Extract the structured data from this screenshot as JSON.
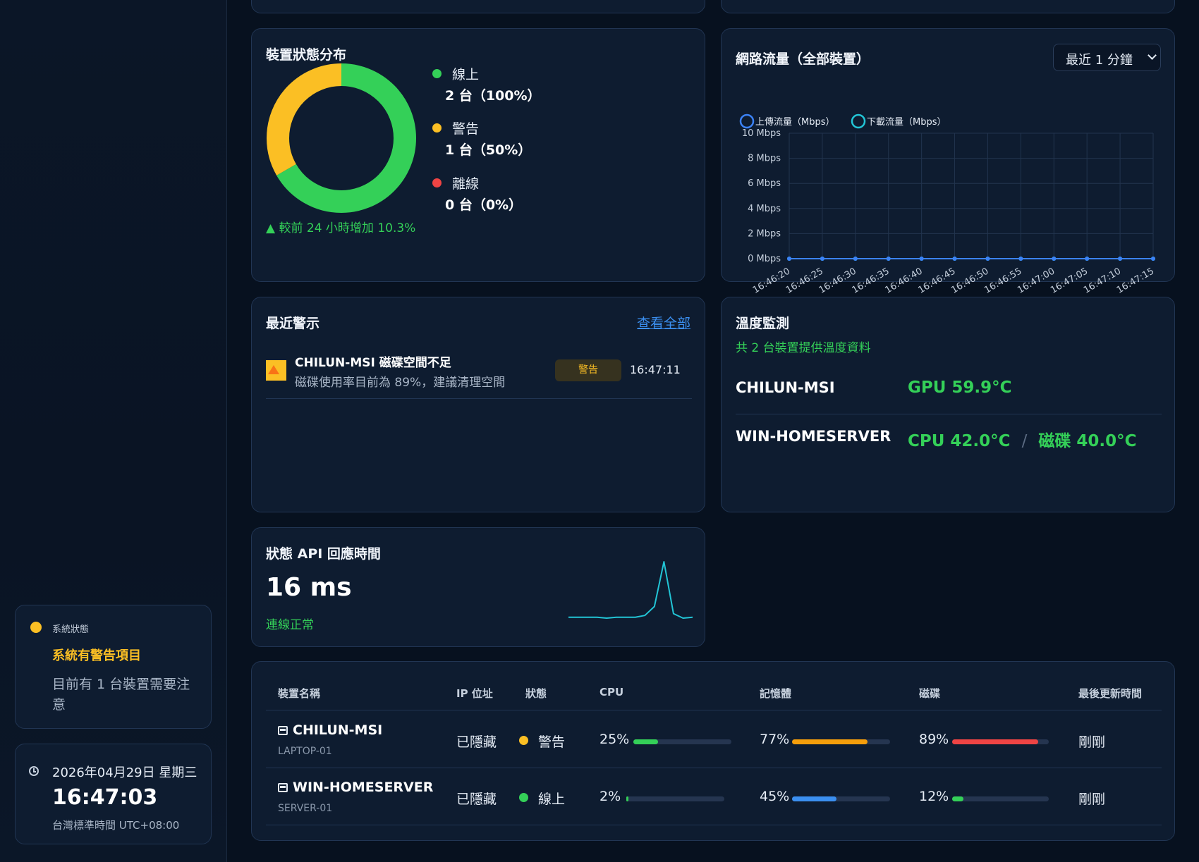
{
  "sidebar": {
    "system_status": {
      "label": "系統狀態",
      "headline": "系統有警告項目",
      "detail": "目前有 1 台裝置需要注意",
      "color": "#fbbf24"
    },
    "clock": {
      "date": "2026年04月29日 星期三",
      "time": "16:47:03",
      "timezone": "台灣標準時間 UTC+08:00"
    }
  },
  "device_status": {
    "title": "裝置狀態分布",
    "change_note": "▲ 較前 24 小時增加 10.3%",
    "legend": [
      {
        "label": "線上",
        "value": "2 台（100%）",
        "color": "#34d058"
      },
      {
        "label": "警告",
        "value": "1 台（50%）",
        "color": "#fbbf24"
      },
      {
        "label": "離線",
        "value": "0 台（0%）",
        "color": "#ef4444"
      }
    ],
    "donut": {
      "online": 2,
      "warning": 1,
      "offline": 0
    }
  },
  "network": {
    "title": "網路流量（全部裝置）",
    "range_select": "最近 1 分鐘",
    "chart_data": {
      "type": "line",
      "x": [
        "16:46:20",
        "16:46:25",
        "16:46:30",
        "16:46:35",
        "16:46:40",
        "16:46:45",
        "16:46:50",
        "16:46:55",
        "16:47:00",
        "16:47:05",
        "16:47:10",
        "16:47:15"
      ],
      "series": [
        {
          "name": "上傳流量（Mbps）",
          "values": [
            0,
            0,
            0,
            0,
            0,
            0,
            0,
            0,
            0,
            0,
            0,
            0
          ],
          "color": "#3b82f6"
        },
        {
          "name": "下載流量（Mbps）",
          "values": [
            0,
            0,
            0,
            0,
            0,
            0,
            0,
            0,
            0,
            0,
            0,
            0
          ],
          "color": "#22c5d6"
        }
      ],
      "yticks": [
        "0 Mbps",
        "2 Mbps",
        "4 Mbps",
        "6 Mbps",
        "8 Mbps",
        "10 Mbps"
      ],
      "ylim": [
        0,
        10
      ],
      "grid": true,
      "legend": "top-left"
    }
  },
  "alerts": {
    "title": "最近警示",
    "view_all": "查看全部",
    "items": [
      {
        "title": "CHILUN-MSI 磁碟空間不足",
        "detail": "磁碟使用率目前為 89%，建議清理空間",
        "badge": "警告",
        "time": "16:47:11"
      }
    ]
  },
  "temperature": {
    "title": "溫度監測",
    "subtitle": "共 2 台裝置提供溫度資料",
    "devices": [
      {
        "name": "CHILUN-MSI",
        "reading": "GPU 59.9°C"
      },
      {
        "name": "WIN-HOMESERVER",
        "reading": "CPU 42.0°C",
        "sep": "/",
        "reading2": "磁碟 40.0°C"
      }
    ]
  },
  "api": {
    "title": "狀態 API 回應時間",
    "value": "16 ms",
    "status": "連線正常",
    "spark": [
      18,
      18,
      18,
      18,
      17,
      18,
      18,
      18,
      20,
      30,
      80,
      22,
      17,
      18
    ]
  },
  "table": {
    "headers": [
      "裝置名稱",
      "IP 位址",
      "狀態",
      "CPU",
      "記憶體",
      "磁碟",
      "最後更新時間"
    ],
    "rows": [
      {
        "name": "CHILUN-MSI",
        "sub": "LAPTOP-01",
        "ip": "已隱藏",
        "status": "警告",
        "status_color": "#fbbf24",
        "cpu": 25,
        "cpu_text": "25%",
        "cpu_color": "#34d058",
        "mem": 77,
        "mem_text": "77%",
        "mem_color": "#f59e0b",
        "disk": 89,
        "disk_text": "89%",
        "disk_color": "#ef4444",
        "updated": "剛剛"
      },
      {
        "name": "WIN-HOMESERVER",
        "sub": "SERVER-01",
        "ip": "已隱藏",
        "status": "線上",
        "status_color": "#34d058",
        "cpu": 2,
        "cpu_text": "2%",
        "cpu_color": "#34d058",
        "mem": 45,
        "mem_text": "45%",
        "mem_color": "#3b8ff0",
        "disk": 12,
        "disk_text": "12%",
        "disk_color": "#34d058",
        "updated": "剛剛"
      }
    ]
  }
}
